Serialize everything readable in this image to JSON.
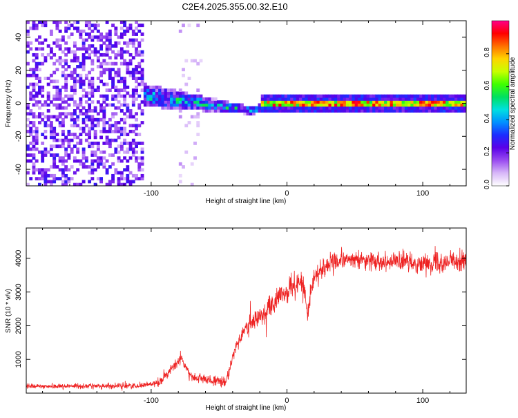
{
  "title": "C2E4.2025.355.00.32.E10",
  "chart_data": [
    {
      "type": "heatmap",
      "name": "spectrogram",
      "xlabel": "Height of straight line (km)",
      "ylabel": "Frequency (Hz)",
      "xlim": [
        -192,
        132
      ],
      "ylim": [
        -50,
        50
      ],
      "xticks": [
        -100,
        0,
        100
      ],
      "xtick_labels": [
        "-100",
        "0",
        "100"
      ],
      "yticks": [
        -40,
        -20,
        0,
        20,
        40
      ],
      "ytick_labels": [
        "-40",
        "-20",
        "0",
        "20",
        "40"
      ],
      "colorbar": {
        "label": "Normalized spectral amplitude",
        "range": [
          0,
          1
        ],
        "ticks": [
          0.0,
          0.2,
          0.4,
          0.6,
          0.8
        ],
        "tick_labels": [
          "0.0",
          "0.2",
          "0.4",
          "0.6",
          "0.8"
        ],
        "colors": [
          "#ffffff",
          "#d8b8f8",
          "#9a4cf0",
          "#5a00e8",
          "#1c2cff",
          "#0090ff",
          "#00e0e0",
          "#00e060",
          "#40ff00",
          "#c8ff00",
          "#ffd400",
          "#ff7000",
          "#ff0000",
          "#ff0088"
        ]
      },
      "features": {
        "noise_region_x": [
          -192,
          -105
        ],
        "sparse_band_x": [
          -80,
          -62
        ],
        "transition_x": [
          -105,
          -20
        ],
        "signal_frequency_hz": 0,
        "transition_offset_hz": [
          5,
          -5
        ]
      }
    },
    {
      "type": "line",
      "name": "snr",
      "xlabel": "Height of straight line (km)",
      "ylabel": "SNR (10 * v/v)",
      "xlim": [
        -192,
        132
      ],
      "ylim": [
        0,
        4900
      ],
      "xticks": [
        -100,
        0,
        100
      ],
      "xtick_labels": [
        "-100",
        "0",
        "100"
      ],
      "yticks": [
        1000,
        2000,
        3000,
        4000
      ],
      "ytick_labels": [
        "1000",
        "2000",
        "3000",
        "4000"
      ],
      "color": "#ee2222",
      "trend": {
        "x": [
          -192,
          -110,
          -95,
          -85,
          -78,
          -70,
          -55,
          -45,
          -38,
          -30,
          -20,
          -10,
          0,
          10,
          13,
          15,
          20,
          30,
          40,
          60,
          80,
          100,
          132
        ],
        "y": [
          200,
          220,
          300,
          700,
          1050,
          450,
          380,
          300,
          1400,
          1900,
          2300,
          2650,
          3000,
          3350,
          3100,
          2200,
          3500,
          3800,
          3950,
          3950,
          3900,
          3850,
          3950
        ]
      },
      "noise_amplitude": {
        "x": [
          -192,
          -100,
          -80,
          -50,
          -35,
          -20,
          0,
          15,
          40,
          80,
          132
        ],
        "y": [
          90,
          110,
          220,
          180,
          350,
          420,
          460,
          480,
          330,
          350,
          380
        ]
      }
    }
  ]
}
